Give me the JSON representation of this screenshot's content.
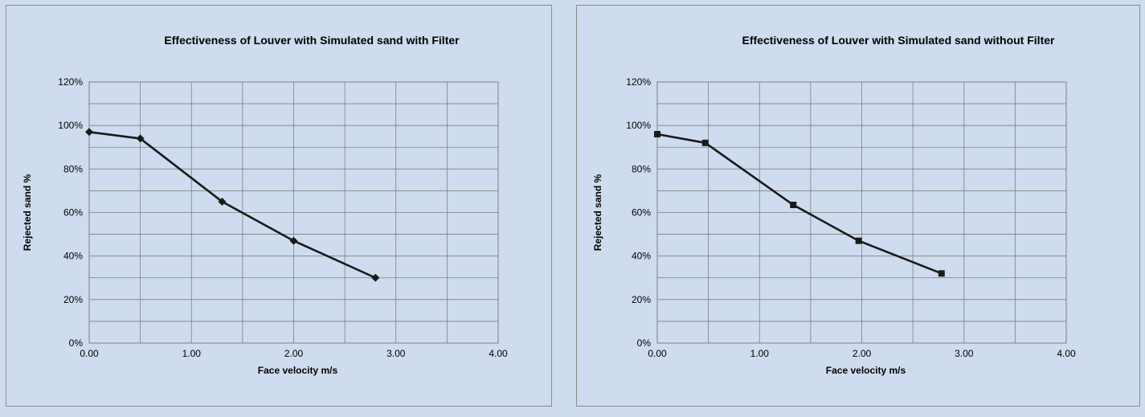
{
  "colors": {
    "background": "#cfdcef",
    "series": "#1a1a1a",
    "grid": "#7f7f7f"
  },
  "chart_data": [
    {
      "type": "scatter",
      "title": "Effectiveness of Louver with Simulated sand with Filter",
      "xlabel": "Face velocity m/s",
      "ylabel": "Rejected sand %",
      "xlim": [
        0,
        4
      ],
      "ylim": [
        0,
        120
      ],
      "x_ticks": [
        "0.00",
        "1.00",
        "2.00",
        "3.00",
        "4.00"
      ],
      "y_ticks": [
        "0%",
        "20%",
        "40%",
        "60%",
        "80%",
        "100%",
        "120%"
      ],
      "grid": true,
      "marker": "diamond",
      "series": [
        {
          "x": [
            0.0,
            0.5,
            1.3,
            2.0,
            2.8
          ],
          "y": [
            97,
            94,
            65,
            47,
            30
          ]
        }
      ]
    },
    {
      "type": "scatter",
      "title": "Effectiveness of Louver with Simulated sand without Filter",
      "xlabel": "Face velocity m/s",
      "ylabel": "Rejected sand %",
      "xlim": [
        0,
        4
      ],
      "ylim": [
        0,
        120
      ],
      "x_ticks": [
        "0.00",
        "1.00",
        "2.00",
        "3.00",
        "4.00"
      ],
      "y_ticks": [
        "0%",
        "20%",
        "40%",
        "60%",
        "80%",
        "100%",
        "120%"
      ],
      "grid": true,
      "marker": "square",
      "series": [
        {
          "x": [
            0.0,
            0.47,
            1.33,
            1.97,
            2.78
          ],
          "y": [
            96,
            92,
            63.5,
            47,
            32
          ]
        }
      ]
    }
  ]
}
